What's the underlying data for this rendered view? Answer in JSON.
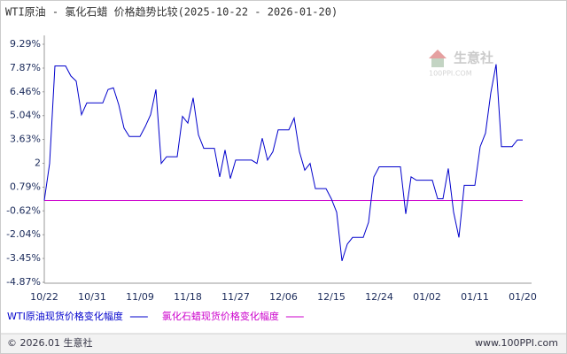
{
  "chart_data": {
    "type": "line",
    "title": "WTI原油 - 氯化石蜡 价格趋势比较(2025-10-22 - 2026-01-20)",
    "categories": [
      "10/22",
      null,
      null,
      null,
      null,
      null,
      null,
      null,
      null,
      "10/31",
      null,
      null,
      null,
      null,
      null,
      null,
      null,
      null,
      "11/09",
      null,
      null,
      null,
      null,
      null,
      null,
      null,
      null,
      "11/18",
      null,
      null,
      null,
      null,
      null,
      null,
      null,
      null,
      "11/27",
      null,
      null,
      null,
      null,
      null,
      null,
      null,
      null,
      "12/06",
      null,
      null,
      null,
      null,
      null,
      null,
      null,
      null,
      "12/15",
      null,
      null,
      null,
      null,
      null,
      null,
      null,
      null,
      "12/24",
      null,
      null,
      null,
      null,
      null,
      null,
      null,
      null,
      "01/02",
      null,
      null,
      null,
      null,
      null,
      null,
      null,
      null,
      "01/11",
      null,
      null,
      null,
      null,
      null,
      null,
      null,
      null,
      "01/20"
    ],
    "series": [
      {
        "name": "WTI原油现货价格变化幅度",
        "color": "#0000cc",
        "values": [
          0,
          2.2,
          8,
          8,
          8,
          7.4,
          7.1,
          5.1,
          5.8,
          5.8,
          5.8,
          5.8,
          6.6,
          6.7,
          5.7,
          4.3,
          3.8,
          3.8,
          3.8,
          4.4,
          5.1,
          6.6,
          2.2,
          2.6,
          2.6,
          2.6,
          5.0,
          4.6,
          6.1,
          3.9,
          3.1,
          3.1,
          3.1,
          1.4,
          3.0,
          1.3,
          2.4,
          2.4,
          2.4,
          2.4,
          2.2,
          3.7,
          2.4,
          2.9,
          4.2,
          4.2,
          4.2,
          4.9,
          2.9,
          1.8,
          2.2,
          0.7,
          0.7,
          0.7,
          0.1,
          -0.7,
          -3.6,
          -2.6,
          -2.2,
          -2.2,
          -2.2,
          -1.3,
          1.4,
          2.0,
          2.0,
          2.0,
          2.0,
          2.0,
          -0.8,
          1.4,
          1.2,
          1.2,
          1.2,
          1.2,
          0.1,
          0.1,
          1.9,
          -0.7,
          -2.2,
          0.9,
          0.9,
          0.9,
          3.2,
          4.0,
          6.4,
          8.1,
          3.2,
          3.2,
          3.2,
          3.6,
          3.6
        ]
      },
      {
        "name": "氯化石蜡现货价格变化幅度",
        "color": "#cc00cc",
        "values": [
          0,
          0,
          0,
          0,
          0,
          0,
          0,
          0,
          0,
          0,
          0,
          0,
          0,
          0,
          0,
          0,
          0,
          0,
          0,
          0,
          0,
          0,
          0,
          0,
          0,
          0,
          0,
          0,
          0,
          0,
          0,
          0,
          0,
          0,
          0,
          0,
          0,
          0,
          0,
          0,
          0,
          0,
          0,
          0,
          0,
          0,
          0,
          0,
          0,
          0,
          0,
          0,
          0,
          0,
          0,
          0,
          0,
          0,
          0,
          0,
          0,
          0,
          0,
          0,
          0,
          0,
          0,
          0,
          0,
          0,
          0,
          0,
          0,
          0,
          0,
          0,
          0,
          0,
          0,
          0,
          0,
          0,
          0,
          0,
          0,
          0,
          0,
          0,
          0,
          0,
          0
        ]
      }
    ],
    "ylim": [
      -4.87,
      9.29
    ],
    "yticks": [
      {
        "value": 9.29,
        "label": "9.29%"
      },
      {
        "value": 7.87,
        "label": "7.87%"
      },
      {
        "value": 6.46,
        "label": "6.46%"
      },
      {
        "value": 5.04,
        "label": "5.04%"
      },
      {
        "value": 3.63,
        "label": "3.63%"
      },
      {
        "value": 2.21,
        "label": "2"
      },
      {
        "value": 0.79,
        "label": "0.79%"
      },
      {
        "value": -0.62,
        "label": "-0.62%"
      },
      {
        "value": -2.04,
        "label": "-2.04%"
      },
      {
        "value": -3.45,
        "label": "-3.45%"
      },
      {
        "value": -4.87,
        "label": "-4.87%"
      }
    ],
    "grid": false
  },
  "watermark": {
    "name": "生意社",
    "site": "100PPI.COM"
  },
  "footer": {
    "left": "© 2026.01 生意社",
    "right": "www.100PPI.com"
  }
}
